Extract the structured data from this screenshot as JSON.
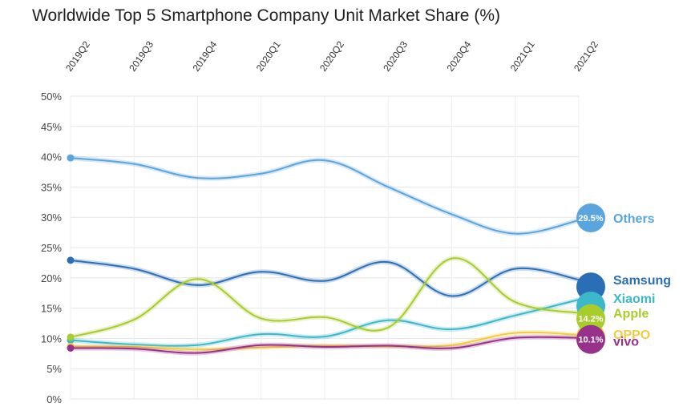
{
  "chart_data": {
    "type": "line",
    "title": "Worldwide Top 5 Smartphone Company Unit Market Share (%)",
    "x": [
      "2019Q2",
      "2019Q3",
      "2019Q4",
      "2020Q1",
      "2020Q2",
      "2020Q3",
      "2020Q4",
      "2021Q1",
      "2021Q2"
    ],
    "y_ticks": [
      "0%",
      "5%",
      "10%",
      "15%",
      "20%",
      "25%",
      "30%",
      "35%",
      "40%",
      "45%",
      "50%"
    ],
    "ylim": [
      0,
      50
    ],
    "grid": true,
    "series": [
      {
        "name": "Others",
        "color": "#5aa5de",
        "values": [
          39.8,
          38.8,
          36.5,
          37.2,
          39.4,
          35.0,
          30.5,
          27.3,
          29.5
        ],
        "badge": "29.5%"
      },
      {
        "name": "Samsung",
        "color": "#2a6fb5",
        "values": [
          22.9,
          21.5,
          18.8,
          21.0,
          19.5,
          22.6,
          17.0,
          21.5,
          19.7
        ],
        "badge": ""
      },
      {
        "name": "Xiaomi",
        "color": "#3bb8c9",
        "values": [
          9.7,
          9.0,
          8.9,
          10.7,
          10.3,
          13.0,
          11.5,
          13.8,
          16.4
        ],
        "badge": ""
      },
      {
        "name": "Apple",
        "color": "#a7cc2c",
        "values": [
          10.2,
          13.1,
          19.8,
          13.3,
          13.5,
          11.8,
          23.2,
          16.0,
          14.2
        ],
        "badge": "14.2%"
      },
      {
        "name": "OPPO",
        "color": "#f3cc40",
        "values": [
          8.7,
          8.6,
          8.2,
          8.5,
          8.8,
          8.7,
          8.9,
          10.9,
          10.6
        ],
        "badge": ""
      },
      {
        "name": "vivo",
        "color": "#97318c",
        "values": [
          8.4,
          8.3,
          7.6,
          8.9,
          8.6,
          8.8,
          8.4,
          10.1,
          10.1
        ],
        "badge": "10.1%"
      }
    ]
  }
}
